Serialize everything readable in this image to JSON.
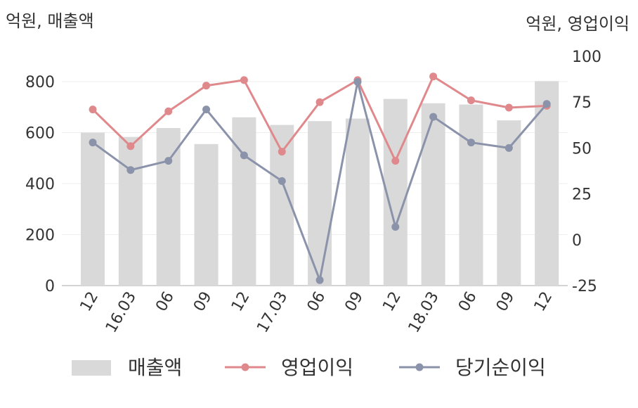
{
  "chart_data": {
    "type": "bar+line",
    "left_unit": "억원, 매출액",
    "right_unit": "억원, 영업이익",
    "categories": [
      "12",
      "16.03",
      "06",
      "09",
      "12",
      "17.03",
      "06",
      "09",
      "12",
      "18.03",
      "06",
      "09",
      "12"
    ],
    "left_axis": {
      "min": 0,
      "max": 800,
      "ticks": [
        "0",
        "200",
        "400",
        "600",
        "800"
      ],
      "tick_values": [
        0,
        200,
        400,
        600,
        800
      ]
    },
    "right_axis": {
      "min": -25,
      "max": 100,
      "ticks": [
        "-25",
        "0",
        "25",
        "50",
        "75",
        "100"
      ],
      "tick_values": [
        -25,
        0,
        25,
        50,
        75,
        100
      ]
    },
    "series": [
      {
        "name": "매출액",
        "kind": "bar",
        "axis": "left",
        "color": "#d9d9d9",
        "values": [
          600,
          583,
          618,
          555,
          660,
          630,
          645,
          655,
          732,
          715,
          710,
          648,
          802
        ]
      },
      {
        "name": "영업이익",
        "kind": "line",
        "axis": "right",
        "color": "#e0898c",
        "values": [
          71,
          51,
          70,
          84,
          87,
          48,
          75,
          87,
          43,
          89,
          76,
          72,
          73
        ]
      },
      {
        "name": "당기순이익",
        "kind": "line",
        "axis": "right",
        "color": "#8b93aa",
        "values": [
          53,
          38,
          43,
          71,
          46,
          32,
          -22,
          86,
          7,
          67,
          53,
          50,
          74
        ]
      }
    ],
    "grid": "horizontal",
    "legend_position": "bottom"
  }
}
